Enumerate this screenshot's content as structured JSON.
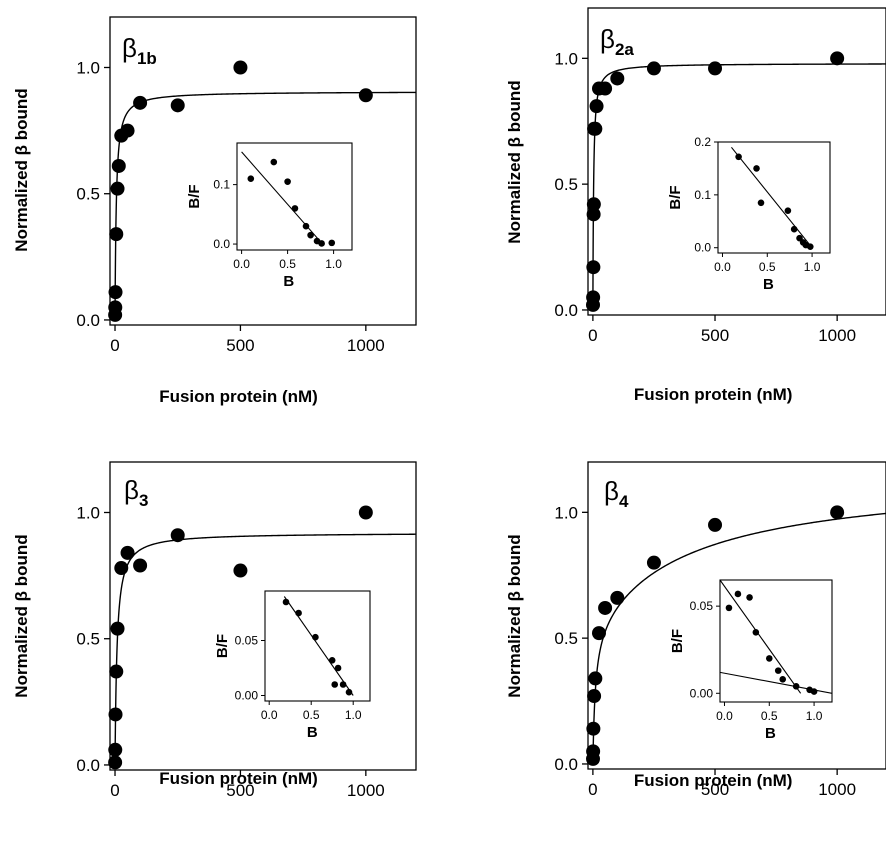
{
  "chart_data": [
    {
      "type": "scatter",
      "panel_label": "β",
      "panel_label_sub": "1b",
      "xlabel": "Fusion protein (nM)",
      "ylabel": "Normalized β bound",
      "xlim": [
        -20,
        1200
      ],
      "ylim": [
        -0.02,
        1.2
      ],
      "xticks": [
        0,
        500,
        1000
      ],
      "yticks": [
        0.0,
        0.5,
        1.0
      ],
      "ytick_labels": [
        "0.0",
        "0.5",
        "1.0"
      ],
      "points": {
        "x": [
          0.5,
          1,
          2,
          5,
          10,
          15,
          25,
          50,
          100,
          250,
          500,
          1000
        ],
        "y": [
          0.02,
          0.05,
          0.11,
          0.34,
          0.52,
          0.61,
          0.73,
          0.75,
          0.86,
          0.85,
          1.0,
          0.89
        ]
      },
      "fit": {
        "model": "Bmax*x/(Kd+x)",
        "Bmax": 0.905,
        "Kd": 5
      },
      "inset": {
        "xlabel": "B",
        "ylabel": "B/F",
        "xlim": [
          -0.05,
          1.2
        ],
        "ylim": [
          -0.01,
          0.17
        ],
        "xticks": [
          0.0,
          0.5,
          1.0
        ],
        "yticks": [
          0.0,
          0.1
        ],
        "xtick_labels": [
          "0.0",
          "0.5",
          "1.0"
        ],
        "ytick_labels": [
          "0.0",
          "0.1"
        ],
        "points": {
          "x": [
            0.1,
            0.35,
            0.5,
            0.58,
            0.7,
            0.75,
            0.82,
            0.87,
            0.98
          ],
          "y": [
            0.11,
            0.138,
            0.105,
            0.06,
            0.03,
            0.015,
            0.005,
            0.001,
            0.002
          ]
        },
        "lines": [
          {
            "x": [
              0.0,
              0.88
            ],
            "y": [
              0.155,
              0.0
            ]
          }
        ]
      }
    },
    {
      "type": "scatter",
      "panel_label": "β",
      "panel_label_sub": "2a",
      "xlabel": "Fusion protein (nM)",
      "ylabel": "Normalized β bound",
      "xlim": [
        -20,
        1200
      ],
      "ylim": [
        -0.02,
        1.2
      ],
      "xticks": [
        0,
        500,
        1000
      ],
      "yticks": [
        0.0,
        0.5,
        1.0
      ],
      "ytick_labels": [
        "0.0",
        "0.5",
        "1.0"
      ],
      "points": {
        "x": [
          0.5,
          1,
          2,
          3,
          4,
          5,
          10,
          15,
          25,
          50,
          100,
          250,
          500,
          1000
        ],
        "y": [
          0.02,
          0.05,
          0.17,
          0.38,
          0.42,
          0.72,
          0.72,
          0.81,
          0.88,
          0.88,
          0.92,
          0.96,
          0.96,
          1.0
        ]
      },
      "fit": {
        "model": "Bmax*x/(Kd+x)",
        "Bmax": 0.98,
        "Kd": 3
      },
      "inset": {
        "xlabel": "B",
        "ylabel": "B/F",
        "xlim": [
          -0.05,
          1.2
        ],
        "ylim": [
          -0.01,
          0.2
        ],
        "xticks": [
          0.0,
          0.5,
          1.0
        ],
        "yticks": [
          0.0,
          0.1,
          0.2
        ],
        "xtick_labels": [
          "0.0",
          "0.5",
          "1.0"
        ],
        "ytick_labels": [
          "0.0",
          "0.1",
          "0.2"
        ],
        "points": {
          "x": [
            0.18,
            0.38,
            0.43,
            0.73,
            0.8,
            0.86,
            0.9,
            0.93,
            0.98
          ],
          "y": [
            0.172,
            0.15,
            0.085,
            0.07,
            0.035,
            0.018,
            0.01,
            0.005,
            0.002
          ]
        },
        "lines": [
          {
            "x": [
              0.1,
              1.0
            ],
            "y": [
              0.19,
              0.0
            ]
          }
        ]
      }
    },
    {
      "type": "scatter",
      "panel_label": "β",
      "panel_label_sub": "3",
      "xlabel": "Fusion protein (nM)",
      "ylabel": "Normalized β bound",
      "xlim": [
        -20,
        1200
      ],
      "ylim": [
        -0.02,
        1.2
      ],
      "xticks": [
        0,
        500,
        1000
      ],
      "yticks": [
        0.0,
        0.5,
        1.0
      ],
      "ytick_labels": [
        "0.0",
        "0.5",
        "1.0"
      ],
      "points": {
        "x": [
          0.5,
          1,
          2,
          5,
          10,
          25,
          50,
          100,
          250,
          500,
          1000
        ],
        "y": [
          0.01,
          0.06,
          0.2,
          0.37,
          0.54,
          0.78,
          0.84,
          0.79,
          0.91,
          0.77,
          1.0
        ]
      },
      "fit": {
        "model": "Bmax*x/(Kd+x)",
        "Bmax": 0.92,
        "Kd": 8
      },
      "inset": {
        "xlabel": "B",
        "ylabel": "B/F",
        "xlim": [
          -0.05,
          1.2
        ],
        "ylim": [
          -0.005,
          0.095
        ],
        "xticks": [
          0.0,
          0.5,
          1.0
        ],
        "yticks": [
          0.0,
          0.05
        ],
        "xtick_labels": [
          "0.0",
          "0.5",
          "1.0"
        ],
        "ytick_labels": [
          "0.00",
          "0.05"
        ],
        "points": {
          "x": [
            0.2,
            0.35,
            0.55,
            0.75,
            0.78,
            0.82,
            0.88,
            0.95
          ],
          "y": [
            0.085,
            0.075,
            0.053,
            0.032,
            0.01,
            0.025,
            0.01,
            0.003
          ]
        },
        "lines": [
          {
            "x": [
              0.18,
              1.0
            ],
            "y": [
              0.09,
              0.0
            ]
          }
        ]
      }
    },
    {
      "type": "scatter",
      "panel_label": "β",
      "panel_label_sub": "4",
      "xlabel": "Fusion protein (nM)",
      "ylabel": "Normalized β bound",
      "xlim": [
        -20,
        1200
      ],
      "ylim": [
        -0.02,
        1.2
      ],
      "xticks": [
        0,
        500,
        1000
      ],
      "yticks": [
        0.0,
        0.5,
        1.0
      ],
      "ytick_labels": [
        "0.0",
        "0.5",
        "1.0"
      ],
      "points": {
        "x": [
          0.5,
          1,
          2,
          5,
          10,
          25,
          50,
          100,
          250,
          500,
          1000
        ],
        "y": [
          0.02,
          0.05,
          0.14,
          0.27,
          0.34,
          0.52,
          0.62,
          0.66,
          0.8,
          0.95,
          1.0
        ]
      },
      "fit": {
        "model": "B1*x/(K1+x)+B2*x/(K2+x)",
        "B1": 0.55,
        "K1": 10,
        "B2": 0.6,
        "K2": 400
      },
      "inset": {
        "xlabel": "B",
        "ylabel": "B/F",
        "xlim": [
          -0.05,
          1.2
        ],
        "ylim": [
          -0.005,
          0.065
        ],
        "xticks": [
          0.0,
          0.5,
          1.0
        ],
        "yticks": [
          0.0,
          0.05
        ],
        "xtick_labels": [
          "0.0",
          "0.5",
          "1.0"
        ],
        "ytick_labels": [
          "0.00",
          "0.05"
        ],
        "points": {
          "x": [
            0.05,
            0.15,
            0.28,
            0.35,
            0.5,
            0.6,
            0.65,
            0.8,
            0.95,
            1.0
          ],
          "y": [
            0.049,
            0.057,
            0.055,
            0.035,
            0.02,
            0.013,
            0.008,
            0.004,
            0.002,
            0.001
          ]
        },
        "lines": [
          {
            "x": [
              -0.05,
              0.85
            ],
            "y": [
              0.065,
              0.0
            ]
          },
          {
            "x": [
              -0.05,
              1.2
            ],
            "y": [
              0.012,
              0.0
            ]
          }
        ]
      }
    }
  ]
}
